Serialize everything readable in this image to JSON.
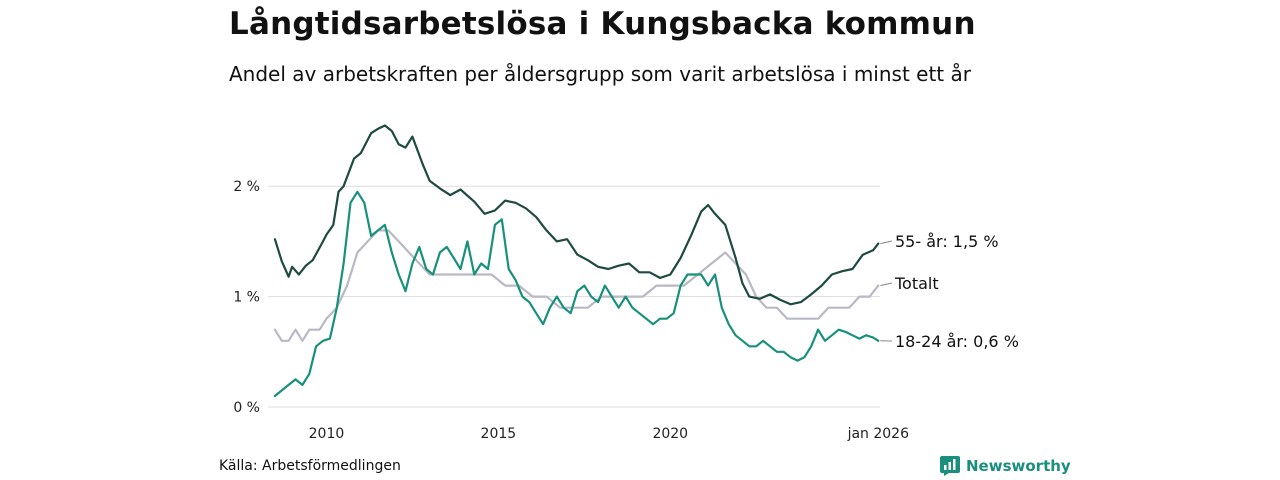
{
  "title": "Långtidsarbetslösa i Kungsbacka kommun",
  "subtitle": "Andel av arbetskraften per åldersgrupp som varit arbetslösa i minst ett år",
  "source": "Källa: Arbetsförmedlingen",
  "brand": "Newsworthy",
  "colors": {
    "older": "#1e4a40",
    "young": "#17917c",
    "total": "#b9b9c6",
    "grid": "#dddddd",
    "brand": "#1a8f7e"
  },
  "chart_data": {
    "type": "line",
    "title": "Långtidsarbetslösa i Kungsbacka kommun",
    "xlabel": "",
    "ylabel": "",
    "xlim": [
      2008.3,
      2026.1
    ],
    "ylim": [
      0,
      2.6
    ],
    "y_ticks": [
      {
        "value": 0,
        "label": "0 %"
      },
      {
        "value": 1,
        "label": "1 %"
      },
      {
        "value": 2,
        "label": "2 %"
      }
    ],
    "x_ticks": [
      {
        "value": 2010,
        "label": "2010"
      },
      {
        "value": 2015,
        "label": "2015"
      },
      {
        "value": 2020,
        "label": "2020"
      },
      {
        "value": 2026.05,
        "label": "jan 2026"
      }
    ],
    "series": [
      {
        "name": "55- år",
        "label": "55- år: 1,5 %",
        "color": "#1e4a40",
        "x": [
          2008.5,
          2008.7,
          2008.9,
          2009.0,
          2009.2,
          2009.4,
          2009.6,
          2009.9,
          2010.0,
          2010.2,
          2010.35,
          2010.5,
          2010.8,
          2011.0,
          2011.3,
          2011.5,
          2011.7,
          2011.9,
          2012.1,
          2012.3,
          2012.5,
          2012.8,
          2013.0,
          2013.3,
          2013.6,
          2013.9,
          2014.3,
          2014.6,
          2014.9,
          2015.2,
          2015.5,
          2015.8,
          2016.1,
          2016.4,
          2016.7,
          2017.0,
          2017.3,
          2017.6,
          2017.9,
          2018.2,
          2018.5,
          2018.8,
          2019.1,
          2019.4,
          2019.7,
          2020.0,
          2020.3,
          2020.6,
          2020.9,
          2021.1,
          2021.3,
          2021.6,
          2021.9,
          2022.1,
          2022.3,
          2022.6,
          2022.9,
          2023.2,
          2023.5,
          2023.8,
          2024.1,
          2024.4,
          2024.7,
          2025.0,
          2025.3,
          2025.6,
          2025.9,
          2026.05
        ],
        "values": [
          1.52,
          1.32,
          1.18,
          1.27,
          1.2,
          1.28,
          1.33,
          1.5,
          1.56,
          1.65,
          1.95,
          2.0,
          2.25,
          2.3,
          2.48,
          2.52,
          2.55,
          2.5,
          2.38,
          2.35,
          2.45,
          2.2,
          2.05,
          1.98,
          1.92,
          1.97,
          1.86,
          1.75,
          1.78,
          1.87,
          1.85,
          1.8,
          1.72,
          1.6,
          1.5,
          1.52,
          1.38,
          1.33,
          1.27,
          1.25,
          1.28,
          1.3,
          1.22,
          1.22,
          1.17,
          1.2,
          1.35,
          1.55,
          1.77,
          1.83,
          1.75,
          1.65,
          1.35,
          1.12,
          1.0,
          0.98,
          1.02,
          0.97,
          0.93,
          0.95,
          1.02,
          1.1,
          1.2,
          1.23,
          1.25,
          1.38,
          1.42,
          1.48
        ]
      },
      {
        "name": "Totalt",
        "label": "Totalt",
        "color": "#b9b9c6",
        "x": [
          2008.5,
          2008.7,
          2008.9,
          2009.1,
          2009.3,
          2009.5,
          2009.8,
          2010.0,
          2010.3,
          2010.6,
          2010.9,
          2011.2,
          2011.5,
          2011.8,
          2012.1,
          2012.4,
          2012.7,
          2013.0,
          2013.3,
          2013.6,
          2014.0,
          2014.4,
          2014.8,
          2015.2,
          2015.6,
          2016.0,
          2016.4,
          2016.8,
          2017.2,
          2017.6,
          2018.0,
          2018.4,
          2018.8,
          2019.2,
          2019.6,
          2020.0,
          2020.4,
          2020.8,
          2021.2,
          2021.6,
          2021.9,
          2022.2,
          2022.5,
          2022.8,
          2023.1,
          2023.4,
          2023.7,
          2024.0,
          2024.3,
          2024.6,
          2024.9,
          2025.2,
          2025.5,
          2025.8,
          2026.05
        ],
        "values": [
          0.7,
          0.6,
          0.6,
          0.7,
          0.6,
          0.7,
          0.7,
          0.8,
          0.9,
          1.1,
          1.4,
          1.5,
          1.6,
          1.6,
          1.5,
          1.4,
          1.3,
          1.2,
          1.2,
          1.2,
          1.2,
          1.2,
          1.2,
          1.1,
          1.1,
          1.0,
          1.0,
          0.9,
          0.9,
          0.9,
          1.0,
          1.0,
          1.0,
          1.0,
          1.1,
          1.1,
          1.1,
          1.2,
          1.3,
          1.4,
          1.3,
          1.2,
          1.0,
          0.9,
          0.9,
          0.8,
          0.8,
          0.8,
          0.8,
          0.9,
          0.9,
          0.9,
          1.0,
          1.0,
          1.1
        ]
      },
      {
        "name": "18-24 år",
        "label": "18-24 år: 0,6 %",
        "color": "#17917c",
        "x": [
          2008.5,
          2008.7,
          2008.9,
          2009.1,
          2009.3,
          2009.5,
          2009.7,
          2009.9,
          2010.1,
          2010.3,
          2010.5,
          2010.7,
          2010.9,
          2011.1,
          2011.3,
          2011.5,
          2011.7,
          2011.9,
          2012.1,
          2012.3,
          2012.5,
          2012.7,
          2012.9,
          2013.1,
          2013.3,
          2013.5,
          2013.7,
          2013.9,
          2014.1,
          2014.3,
          2014.5,
          2014.7,
          2014.9,
          2015.1,
          2015.3,
          2015.5,
          2015.7,
          2015.9,
          2016.1,
          2016.3,
          2016.5,
          2016.7,
          2016.9,
          2017.1,
          2017.3,
          2017.5,
          2017.7,
          2017.9,
          2018.1,
          2018.3,
          2018.5,
          2018.7,
          2018.9,
          2019.1,
          2019.3,
          2019.5,
          2019.7,
          2019.9,
          2020.1,
          2020.3,
          2020.5,
          2020.7,
          2020.9,
          2021.1,
          2021.3,
          2021.5,
          2021.7,
          2021.9,
          2022.1,
          2022.3,
          2022.5,
          2022.7,
          2022.9,
          2023.1,
          2023.3,
          2023.5,
          2023.7,
          2023.9,
          2024.1,
          2024.3,
          2024.5,
          2024.7,
          2024.9,
          2025.1,
          2025.3,
          2025.5,
          2025.7,
          2025.9,
          2026.05
        ],
        "values": [
          0.1,
          0.15,
          0.2,
          0.25,
          0.2,
          0.3,
          0.55,
          0.6,
          0.62,
          0.9,
          1.3,
          1.85,
          1.95,
          1.85,
          1.55,
          1.6,
          1.65,
          1.4,
          1.2,
          1.05,
          1.3,
          1.45,
          1.25,
          1.2,
          1.4,
          1.45,
          1.35,
          1.25,
          1.5,
          1.2,
          1.3,
          1.25,
          1.65,
          1.7,
          1.25,
          1.15,
          1.0,
          0.95,
          0.85,
          0.75,
          0.9,
          1.0,
          0.9,
          0.85,
          1.05,
          1.1,
          1.0,
          0.95,
          1.1,
          1.0,
          0.9,
          1.0,
          0.9,
          0.85,
          0.8,
          0.75,
          0.8,
          0.8,
          0.85,
          1.1,
          1.2,
          1.2,
          1.2,
          1.1,
          1.2,
          0.9,
          0.75,
          0.65,
          0.6,
          0.55,
          0.55,
          0.6,
          0.55,
          0.5,
          0.5,
          0.45,
          0.42,
          0.45,
          0.55,
          0.7,
          0.6,
          0.65,
          0.7,
          0.68,
          0.65,
          0.62,
          0.65,
          0.63,
          0.6
        ]
      }
    ]
  }
}
